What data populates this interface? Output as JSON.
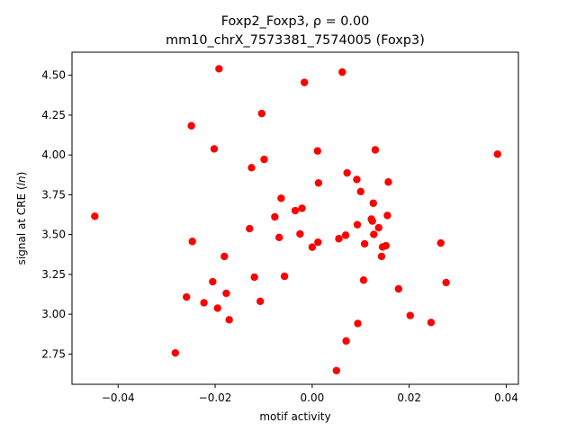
{
  "chart_data": {
    "type": "scatter",
    "title_line1": "Foxp2_Foxp3, ρ = 0.00",
    "title_line2": "mm10_chrX_7573381_7574005 (Foxp3)",
    "xlabel": "motif activity",
    "ylabel_prefix": "signal at CRE (",
    "ylabel_italic": "ln",
    "ylabel_suffix": ")",
    "xlim": [
      -0.0495,
      0.0425
    ],
    "ylim": [
      2.56,
      4.645
    ],
    "x_ticks": [
      -0.04,
      -0.02,
      0.0,
      0.02,
      0.04
    ],
    "x_tick_labels": [
      "−0.04",
      "−0.02",
      "0.00",
      "0.02",
      "0.04"
    ],
    "y_ticks": [
      2.75,
      3.0,
      3.25,
      3.5,
      3.75,
      4.0,
      4.25,
      4.5
    ],
    "y_tick_labels": [
      "2.75",
      "3.00",
      "3.25",
      "3.50",
      "3.75",
      "4.00",
      "4.25",
      "4.50"
    ],
    "grid": false,
    "marker_color": "#ff0000",
    "points": [
      {
        "x": -0.0448,
        "y": 3.615
      },
      {
        "x": -0.0282,
        "y": 2.757
      },
      {
        "x": -0.0259,
        "y": 3.108
      },
      {
        "x": -0.0249,
        "y": 4.183
      },
      {
        "x": -0.0247,
        "y": 3.457
      },
      {
        "x": -0.0223,
        "y": 3.072
      },
      {
        "x": -0.0205,
        "y": 3.204
      },
      {
        "x": -0.0202,
        "y": 4.038
      },
      {
        "x": -0.0195,
        "y": 3.038
      },
      {
        "x": -0.0192,
        "y": 4.541
      },
      {
        "x": -0.0181,
        "y": 3.363
      },
      {
        "x": -0.0177,
        "y": 3.131
      },
      {
        "x": -0.0171,
        "y": 2.965
      },
      {
        "x": -0.0129,
        "y": 3.537
      },
      {
        "x": -0.0125,
        "y": 3.92
      },
      {
        "x": -0.0119,
        "y": 3.233
      },
      {
        "x": -0.0107,
        "y": 3.081
      },
      {
        "x": -0.0104,
        "y": 4.26
      },
      {
        "x": -0.0099,
        "y": 3.972
      },
      {
        "x": -0.0077,
        "y": 3.611
      },
      {
        "x": -0.0068,
        "y": 3.482
      },
      {
        "x": -0.0064,
        "y": 3.728
      },
      {
        "x": -0.0057,
        "y": 3.238
      },
      {
        "x": -0.0035,
        "y": 3.65
      },
      {
        "x": -0.0025,
        "y": 3.504
      },
      {
        "x": -0.0021,
        "y": 3.665
      },
      {
        "x": -0.0016,
        "y": 4.455
      },
      {
        "x": 0.0,
        "y": 3.421
      },
      {
        "x": 0.0011,
        "y": 4.025
      },
      {
        "x": 0.0012,
        "y": 3.452
      },
      {
        "x": 0.0013,
        "y": 3.824
      },
      {
        "x": 0.005,
        "y": 2.646
      },
      {
        "x": 0.0055,
        "y": 3.474
      },
      {
        "x": 0.0062,
        "y": 4.52
      },
      {
        "x": 0.0069,
        "y": 3.496
      },
      {
        "x": 0.007,
        "y": 2.832
      },
      {
        "x": 0.0072,
        "y": 3.887
      },
      {
        "x": 0.0092,
        "y": 3.846
      },
      {
        "x": 0.0093,
        "y": 3.562
      },
      {
        "x": 0.0094,
        "y": 2.942
      },
      {
        "x": 0.01,
        "y": 3.77
      },
      {
        "x": 0.0106,
        "y": 3.214
      },
      {
        "x": 0.0108,
        "y": 3.442
      },
      {
        "x": 0.0122,
        "y": 3.597
      },
      {
        "x": 0.0124,
        "y": 3.585
      },
      {
        "x": 0.0126,
        "y": 3.697
      },
      {
        "x": 0.0127,
        "y": 3.501
      },
      {
        "x": 0.013,
        "y": 4.032
      },
      {
        "x": 0.0137,
        "y": 3.543
      },
      {
        "x": 0.0143,
        "y": 3.363
      },
      {
        "x": 0.0145,
        "y": 3.422
      },
      {
        "x": 0.0152,
        "y": 3.43
      },
      {
        "x": 0.0155,
        "y": 3.62
      },
      {
        "x": 0.0157,
        "y": 3.83
      },
      {
        "x": 0.0178,
        "y": 3.159
      },
      {
        "x": 0.0202,
        "y": 2.992
      },
      {
        "x": 0.0245,
        "y": 2.948
      },
      {
        "x": 0.0265,
        "y": 3.447
      },
      {
        "x": 0.0276,
        "y": 3.199
      },
      {
        "x": 0.0382,
        "y": 4.005
      }
    ]
  }
}
